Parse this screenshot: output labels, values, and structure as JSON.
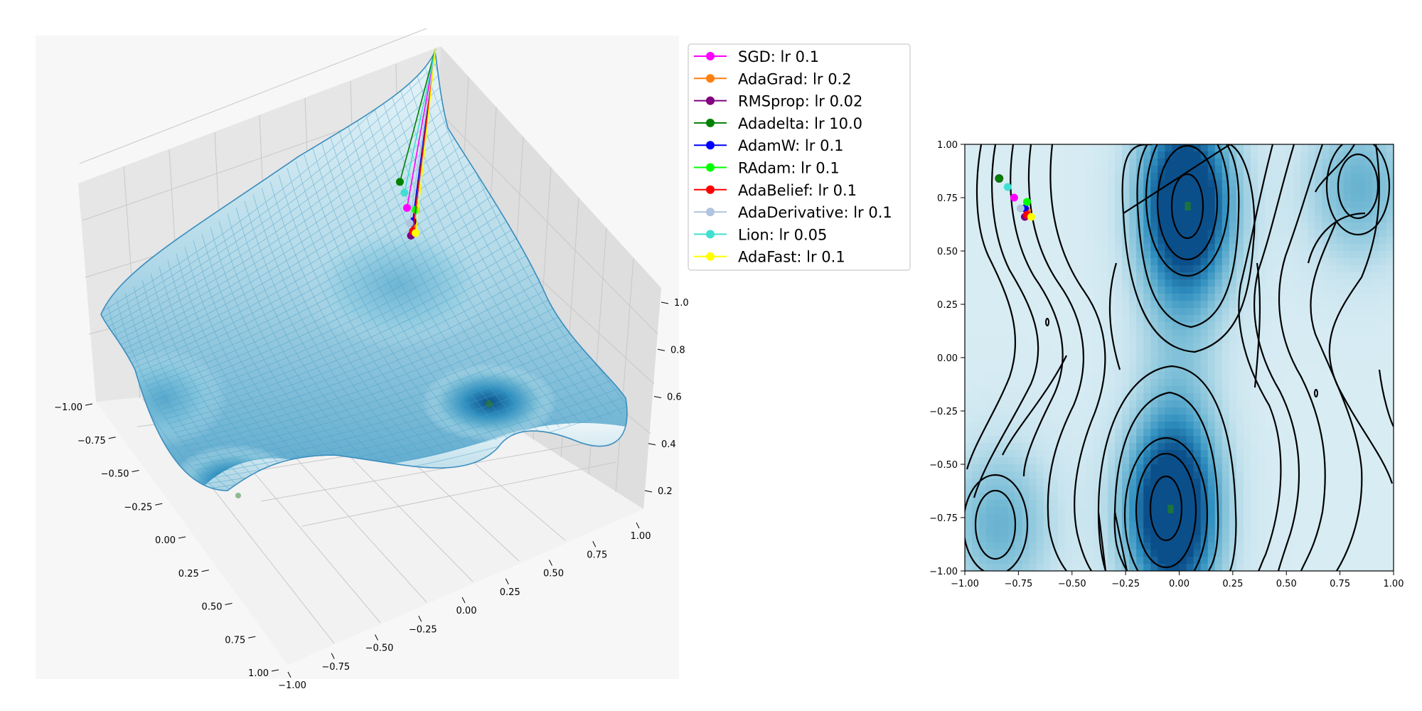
{
  "chart_data": [
    {
      "type": "surface3d",
      "title": "",
      "xlabel": "",
      "ylabel": "",
      "zlabel": "",
      "xlim": [
        -1.0,
        1.0
      ],
      "ylim": [
        -1.0,
        1.0
      ],
      "zlim": [
        0.0,
        1.0
      ],
      "x_ticks": [
        "−1.00",
        "−0.75",
        "−0.50",
        "−0.25",
        "0.00",
        "0.25",
        "0.50",
        "0.75",
        "1.00"
      ],
      "y_ticks": [
        "−1.00",
        "−0.75",
        "−0.50",
        "−0.25",
        "0.00",
        "0.25",
        "0.50",
        "0.75",
        "1.00"
      ],
      "z_ticks": [
        "0.2",
        "0.4",
        "0.6",
        "0.8",
        "1.0"
      ],
      "colormap": [
        "#eef7fa",
        "#c6e3ee",
        "#7fc0d8",
        "#2f8fbf",
        "#0b4f8a"
      ],
      "grid": true
    },
    {
      "type": "contour",
      "title": "",
      "xlabel": "",
      "ylabel": "",
      "xlim": [
        -1.0,
        1.0
      ],
      "ylim": [
        -1.0,
        1.0
      ],
      "x_ticks": [
        "−1.00",
        "−0.75",
        "−0.50",
        "−0.25",
        "0.00",
        "0.25",
        "0.50",
        "0.75",
        "1.00"
      ],
      "y_ticks": [
        "1.00",
        "0.75",
        "0.50",
        "0.25",
        "0.00",
        "−0.25",
        "−0.50",
        "−0.75",
        "−1.00"
      ],
      "minima": [
        {
          "x": 0.04,
          "y": 0.71
        },
        {
          "x": -0.04,
          "y": -0.71
        },
        {
          "x": 0.84,
          "y": 0.8
        },
        {
          "x": -0.84,
          "y": -0.78
        }
      ],
      "endpoints": [
        {
          "name": "SGD: lr 0.1",
          "x": -0.77,
          "y": 0.75
        },
        {
          "name": "AdaGrad: lr 0.2",
          "x": -0.71,
          "y": 0.69
        },
        {
          "name": "RMSprop: lr 0.02",
          "x": -0.72,
          "y": 0.66
        },
        {
          "name": "Adadelta: lr 10.0",
          "x": -0.84,
          "y": 0.84
        },
        {
          "name": "AdamW: lr 0.1",
          "x": -0.72,
          "y": 0.7
        },
        {
          "name": "RAdam: lr 0.1",
          "x": -0.71,
          "y": 0.73
        },
        {
          "name": "AdaBelief: lr 0.1",
          "x": -0.71,
          "y": 0.67
        },
        {
          "name": "AdaDerivative: lr 0.1",
          "x": -0.74,
          "y": 0.7
        },
        {
          "name": "Lion: lr 0.05",
          "x": -0.8,
          "y": 0.8
        },
        {
          "name": "AdaFast: lr 0.1",
          "x": -0.69,
          "y": 0.66
        }
      ]
    }
  ],
  "legend": [
    {
      "label": "SGD: lr 0.1",
      "color": "#ff00ff"
    },
    {
      "label": "AdaGrad: lr 0.2",
      "color": "#ff7f0e"
    },
    {
      "label": "RMSprop: lr 0.02",
      "color": "#800080"
    },
    {
      "label": "Adadelta: lr 10.0",
      "color": "#008000"
    },
    {
      "label": "AdamW: lr 0.1",
      "color": "#0000ff"
    },
    {
      "label": "RAdam: lr 0.1",
      "color": "#00ff00"
    },
    {
      "label": "AdaBelief: lr 0.1",
      "color": "#ff0000"
    },
    {
      "label": "AdaDerivative: lr 0.1",
      "color": "#b0c4de"
    },
    {
      "label": "Lion: lr 0.05",
      "color": "#40e0d0"
    },
    {
      "label": "AdaFast: lr 0.1",
      "color": "#ffff00"
    }
  ],
  "colors": {
    "axes_background": "#f7f7f7",
    "pane_left": "#e6e6e6",
    "pane_right": "#dedede",
    "pane_floor": "#f2f2f2",
    "grid": "#c8c8c8",
    "contour_line": "#000000"
  }
}
